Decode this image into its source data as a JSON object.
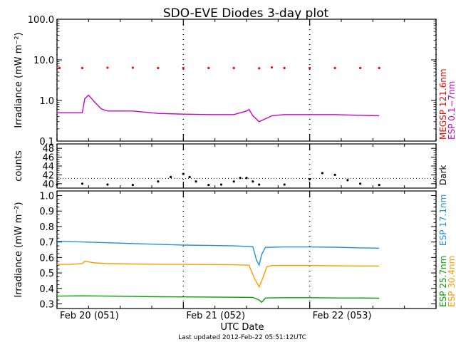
{
  "title": "SDO-EVE Diodes 3-day plot",
  "footer": "Last updated 2012-Feb-22 05:51:12UTC",
  "xlabel": "UTC Date",
  "colors": {
    "frame": "#000000",
    "megsp": "#ff0000",
    "esp_01_7": "#cc00cc",
    "esp_17_1": "#1f8fdf",
    "esp_30_4": "#ff9900",
    "esp_25_7": "#00a000",
    "dark": "#000000"
  },
  "chart_data": [
    {
      "type": "line",
      "panel": "top",
      "ylabel": "Irradiance (mW m⁻²)",
      "yscale": "log",
      "ylim": [
        0.1,
        100
      ],
      "yticks": [
        "100.0",
        "10.0",
        "1.0",
        "0.1"
      ],
      "xlim": [
        0,
        3
      ],
      "xticks": [
        "Feb 20 (051)",
        "Feb 21 (052)",
        "Feb 22 (053)"
      ],
      "right_labels": [
        "MEGSP 121.6nm",
        "ESP 0.1−7nm"
      ],
      "series": [
        {
          "name": "MEGSP 121.6nm",
          "color": "#ff0000",
          "style": "dots",
          "x": [
            0.02,
            0.2,
            0.4,
            0.6,
            0.8,
            1.0,
            1.2,
            1.4,
            1.6,
            1.7,
            1.8,
            2.0,
            2.2,
            2.4,
            2.55
          ],
          "y": [
            6.3,
            6.3,
            6.4,
            6.4,
            6.3,
            6.3,
            6.3,
            6.3,
            6.2,
            6.5,
            6.3,
            6.3,
            6.3,
            6.3,
            6.3
          ]
        },
        {
          "name": "ESP 0.1−7nm",
          "color": "#cc00cc",
          "style": "line",
          "x": [
            0.0,
            0.1,
            0.2,
            0.22,
            0.25,
            0.3,
            0.35,
            0.4,
            0.5,
            0.6,
            0.8,
            1.0,
            1.2,
            1.4,
            1.5,
            1.52,
            1.55,
            1.6,
            1.7,
            1.8,
            2.0,
            2.2,
            2.4,
            2.55
          ],
          "y": [
            0.5,
            0.5,
            0.5,
            1.1,
            1.35,
            0.9,
            0.62,
            0.55,
            0.55,
            0.55,
            0.48,
            0.46,
            0.45,
            0.45,
            0.55,
            0.6,
            0.42,
            0.3,
            0.42,
            0.45,
            0.45,
            0.45,
            0.43,
            0.42
          ]
        }
      ]
    },
    {
      "type": "scatter",
      "panel": "middle",
      "ylabel": "counts",
      "ylim": [
        39,
        49
      ],
      "yticks": [
        40,
        42,
        44,
        46,
        48
      ],
      "reference_line": 41.2,
      "xlim": [
        0,
        3
      ],
      "right_labels": [
        "Dark"
      ],
      "series": [
        {
          "name": "Dark",
          "color": "#000000",
          "style": "dots",
          "x": [
            0.0,
            0.2,
            0.4,
            0.6,
            0.8,
            0.9,
            1.0,
            1.05,
            1.1,
            1.2,
            1.3,
            1.4,
            1.45,
            1.5,
            1.55,
            1.6,
            1.8,
            2.0,
            2.1,
            2.2,
            2.3,
            2.4,
            2.55
          ],
          "y": [
            39.8,
            40.0,
            39.8,
            39.7,
            40.5,
            41.5,
            42.2,
            41.5,
            40.5,
            39.7,
            39.8,
            40.5,
            41.3,
            41.3,
            40.5,
            39.8,
            39.8,
            41.0,
            42.4,
            42.0,
            40.8,
            40.0,
            39.7
          ]
        }
      ]
    },
    {
      "type": "line",
      "panel": "bottom",
      "ylabel": "Irradiance (mW m⁻²)",
      "ylim": [
        0.27,
        1.03
      ],
      "yticks": [
        "1.0",
        "0.9",
        "0.8",
        "0.7",
        "0.6",
        "0.5",
        "0.4",
        "0.3"
      ],
      "xlim": [
        0,
        3
      ],
      "xticks": [
        "Feb 20 (051)",
        "Feb 21 (052)",
        "Feb 22 (053)"
      ],
      "right_labels": [
        "ESP 17.1nm",
        "ESP 30.4nm",
        "ESP 25.7nm"
      ],
      "series": [
        {
          "name": "ESP 17.1nm",
          "color": "#1f8fdf",
          "style": "line",
          "x": [
            0.0,
            0.2,
            0.4,
            0.6,
            0.8,
            1.0,
            1.2,
            1.4,
            1.55,
            1.58,
            1.6,
            1.62,
            1.65,
            1.8,
            2.0,
            2.2,
            2.4,
            2.55
          ],
          "y": [
            0.705,
            0.7,
            0.695,
            0.69,
            0.685,
            0.68,
            0.678,
            0.675,
            0.67,
            0.58,
            0.55,
            0.62,
            0.665,
            0.668,
            0.668,
            0.666,
            0.662,
            0.66
          ]
        },
        {
          "name": "ESP 30.4nm",
          "color": "#ff9900",
          "style": "line",
          "x": [
            0.0,
            0.1,
            0.2,
            0.22,
            0.3,
            0.4,
            0.6,
            0.8,
            1.0,
            1.2,
            1.4,
            1.52,
            1.56,
            1.6,
            1.63,
            1.66,
            1.7,
            1.8,
            2.0,
            2.2,
            2.4,
            2.55
          ],
          "y": [
            0.555,
            0.555,
            0.56,
            0.575,
            0.565,
            0.56,
            0.558,
            0.556,
            0.555,
            0.554,
            0.553,
            0.55,
            0.47,
            0.41,
            0.47,
            0.54,
            0.548,
            0.548,
            0.548,
            0.546,
            0.545,
            0.545
          ]
        },
        {
          "name": "ESP 25.7nm",
          "color": "#00a000",
          "style": "line",
          "x": [
            0.0,
            0.2,
            0.4,
            0.6,
            0.8,
            1.0,
            1.2,
            1.4,
            1.55,
            1.6,
            1.62,
            1.65,
            1.8,
            2.0,
            2.2,
            2.4,
            2.55
          ],
          "y": [
            0.35,
            0.352,
            0.35,
            0.348,
            0.346,
            0.345,
            0.344,
            0.343,
            0.342,
            0.325,
            0.31,
            0.338,
            0.34,
            0.34,
            0.338,
            0.338,
            0.337
          ]
        }
      ]
    }
  ]
}
